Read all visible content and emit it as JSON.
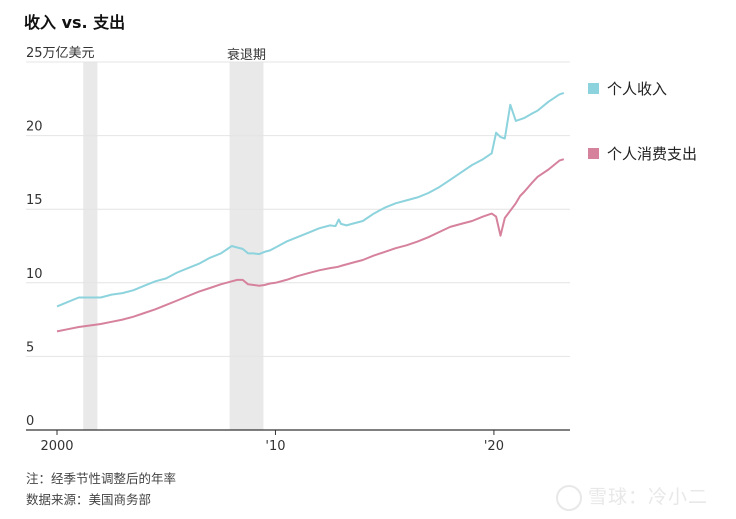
{
  "chart_data": {
    "type": "line",
    "title": "收入 vs. 支出",
    "unit_label": "25万亿美元",
    "ylim": [
      0,
      25
    ],
    "y_ticks": [
      0,
      5,
      10,
      15,
      20,
      25
    ],
    "y_tick_labels": [
      "0",
      "5",
      "10",
      "15",
      "20",
      ""
    ],
    "xlim": [
      2000,
      2023.3
    ],
    "x_ticks": [
      {
        "value": 2000,
        "label": "2000"
      },
      {
        "value": 2010,
        "label": "'10"
      },
      {
        "value": 2020,
        "label": "'20"
      }
    ],
    "grid": true,
    "legend": "right",
    "recessions": [
      {
        "start": 2001.2,
        "end": 2001.85,
        "label": ""
      },
      {
        "start": 2007.9,
        "end": 2009.45,
        "label": "衰退期"
      }
    ],
    "x": [
      2000,
      2000.5,
      2001,
      2001.5,
      2002,
      2002.5,
      2003,
      2003.5,
      2004,
      2004.5,
      2005,
      2005.5,
      2006,
      2006.5,
      2007,
      2007.5,
      2008,
      2008.25,
      2008.5,
      2008.75,
      2009,
      2009.25,
      2009.5,
      2009.75,
      2010,
      2010.5,
      2011,
      2011.5,
      2012,
      2012.5,
      2012.75,
      2012.9,
      2013,
      2013.25,
      2013.5,
      2014,
      2014.5,
      2015,
      2015.5,
      2016,
      2016.5,
      2017,
      2017.5,
      2018,
      2018.5,
      2019,
      2019.5,
      2019.9,
      2020.1,
      2020.3,
      2020.5,
      2020.75,
      2021,
      2021.2,
      2021.4,
      2021.75,
      2022,
      2022.5,
      2023,
      2023.2
    ],
    "series": [
      {
        "name": "个人收入",
        "color": "#8dd3dd",
        "values": [
          8.4,
          8.7,
          9.0,
          9.0,
          9.0,
          9.2,
          9.3,
          9.5,
          9.8,
          10.1,
          10.3,
          10.7,
          11.0,
          11.3,
          11.7,
          12.0,
          12.5,
          12.4,
          12.3,
          12.0,
          12.0,
          11.95,
          12.1,
          12.2,
          12.4,
          12.8,
          13.1,
          13.4,
          13.7,
          13.9,
          13.85,
          14.3,
          14.0,
          13.9,
          14.0,
          14.2,
          14.7,
          15.1,
          15.4,
          15.6,
          15.8,
          16.1,
          16.5,
          17.0,
          17.5,
          18.0,
          18.4,
          18.8,
          20.2,
          19.9,
          19.8,
          22.1,
          21.0,
          21.1,
          21.2,
          21.5,
          21.7,
          22.3,
          22.8,
          22.9
        ]
      },
      {
        "name": "个人消费支出",
        "color": "#d6829d",
        "values": [
          6.7,
          6.85,
          7.0,
          7.1,
          7.2,
          7.35,
          7.5,
          7.7,
          7.95,
          8.2,
          8.5,
          8.8,
          9.1,
          9.4,
          9.65,
          9.9,
          10.1,
          10.2,
          10.2,
          9.9,
          9.85,
          9.8,
          9.85,
          9.95,
          10.0,
          10.2,
          10.45,
          10.65,
          10.85,
          11.0,
          11.05,
          11.1,
          11.15,
          11.25,
          11.35,
          11.55,
          11.85,
          12.1,
          12.35,
          12.55,
          12.8,
          13.1,
          13.45,
          13.8,
          14.0,
          14.2,
          14.5,
          14.7,
          14.5,
          13.2,
          14.4,
          14.9,
          15.4,
          15.9,
          16.2,
          16.8,
          17.2,
          17.7,
          18.3,
          18.4
        ]
      }
    ]
  },
  "footer": {
    "note": "注：经季节性调整后的年率",
    "source": "数据来源：美国商务部"
  },
  "watermark": {
    "text": "雪球：冷小二"
  }
}
